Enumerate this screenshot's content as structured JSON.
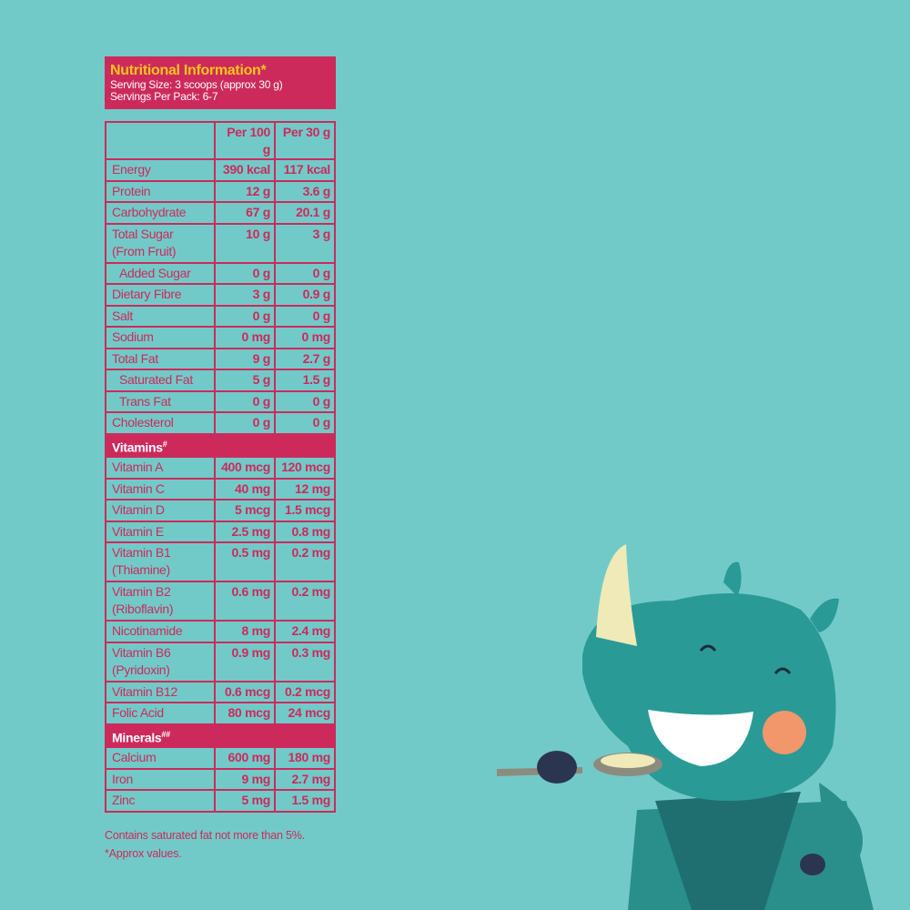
{
  "title": "Nutritional Information*",
  "serving_size": "Serving Size: 3 scoops (approx 30 g)",
  "servings_per_pack": "Servings Per Pack: 6-7",
  "columns": [
    "",
    "Per 100 g",
    "Per 30 g"
  ],
  "rows": [
    {
      "name": "Energy",
      "per100": "390 kcal",
      "per30": "117 kcal"
    },
    {
      "name": "Protein",
      "per100": "12 g",
      "per30": "3.6 g"
    },
    {
      "name": "Carbohydrate",
      "per100": "67 g",
      "per30": "20.1 g"
    },
    {
      "name": "Total Sugar",
      "name2": "(From Fruit)",
      "per100": "10 g",
      "per30": "3 g"
    },
    {
      "name": "Added Sugar",
      "per100": "0 g",
      "per30": "0 g"
    },
    {
      "name": "Dietary Fibre",
      "per100": "3 g",
      "per30": "0.9 g"
    },
    {
      "name": "Salt",
      "per100": "0 g",
      "per30": "0 g"
    },
    {
      "name": "Sodium",
      "per100": "0 mg",
      "per30": "0 mg"
    },
    {
      "name": "Total Fat",
      "per100": "9 g",
      "per30": "2.7 g"
    },
    {
      "name": "Saturated Fat",
      "per100": "5 g",
      "per30": "1.5 g"
    },
    {
      "name": "Trans Fat",
      "per100": "0 g",
      "per30": "0 g"
    },
    {
      "name": "Cholesterol",
      "per100": "0 g",
      "per30": "0 g"
    }
  ],
  "vitamins_label": "Vitamins",
  "vitamins_mark": "#",
  "vitamins": [
    {
      "name": "Vitamin A",
      "per100": "400 mcg",
      "per30": "120 mcg"
    },
    {
      "name": "Vitamin C",
      "per100": "40 mg",
      "per30": "12 mg"
    },
    {
      "name": "Vitamin D",
      "per100": "5 mcg",
      "per30": "1.5 mcg"
    },
    {
      "name": "Vitamin E",
      "per100": "2.5 mg",
      "per30": "0.8 mg"
    },
    {
      "name": "Vitamin B1",
      "name2": "(Thiamine)",
      "per100": "0.5 mg",
      "per30": "0.2 mg"
    },
    {
      "name": "Vitamin B2",
      "name2": "(Riboflavin)",
      "per100": "0.6 mg",
      "per30": "0.2 mg"
    },
    {
      "name": "Nicotinamide",
      "per100": "8 mg",
      "per30": "2.4 mg"
    },
    {
      "name": "Vitamin B6",
      "name2": "(Pyridoxin)",
      "per100": "0.9 mg",
      "per30": "0.3 mg"
    },
    {
      "name": "Vitamin B12",
      "per100": "0.6 mcg",
      "per30": "0.2 mcg"
    },
    {
      "name": "Folic Acid",
      "per100": "80 mcg",
      "per30": "24 mcg"
    }
  ],
  "minerals_label": "Minerals",
  "minerals_mark": "##",
  "minerals": [
    {
      "name": "Calcium",
      "per100": "600 mg",
      "per30": "180 mg"
    },
    {
      "name": "Iron",
      "per100": "9 mg",
      "per30": "2.7 mg"
    },
    {
      "name": "Zinc",
      "per100": "5 mg",
      "per30": "1.5 mg"
    }
  ],
  "notes": [
    "Contains saturated fat not more than 5%.",
    "*Approx values."
  ],
  "colors": {
    "background": "#72cac8",
    "brand": "#cd2a5c",
    "title": "#f6c51c"
  }
}
